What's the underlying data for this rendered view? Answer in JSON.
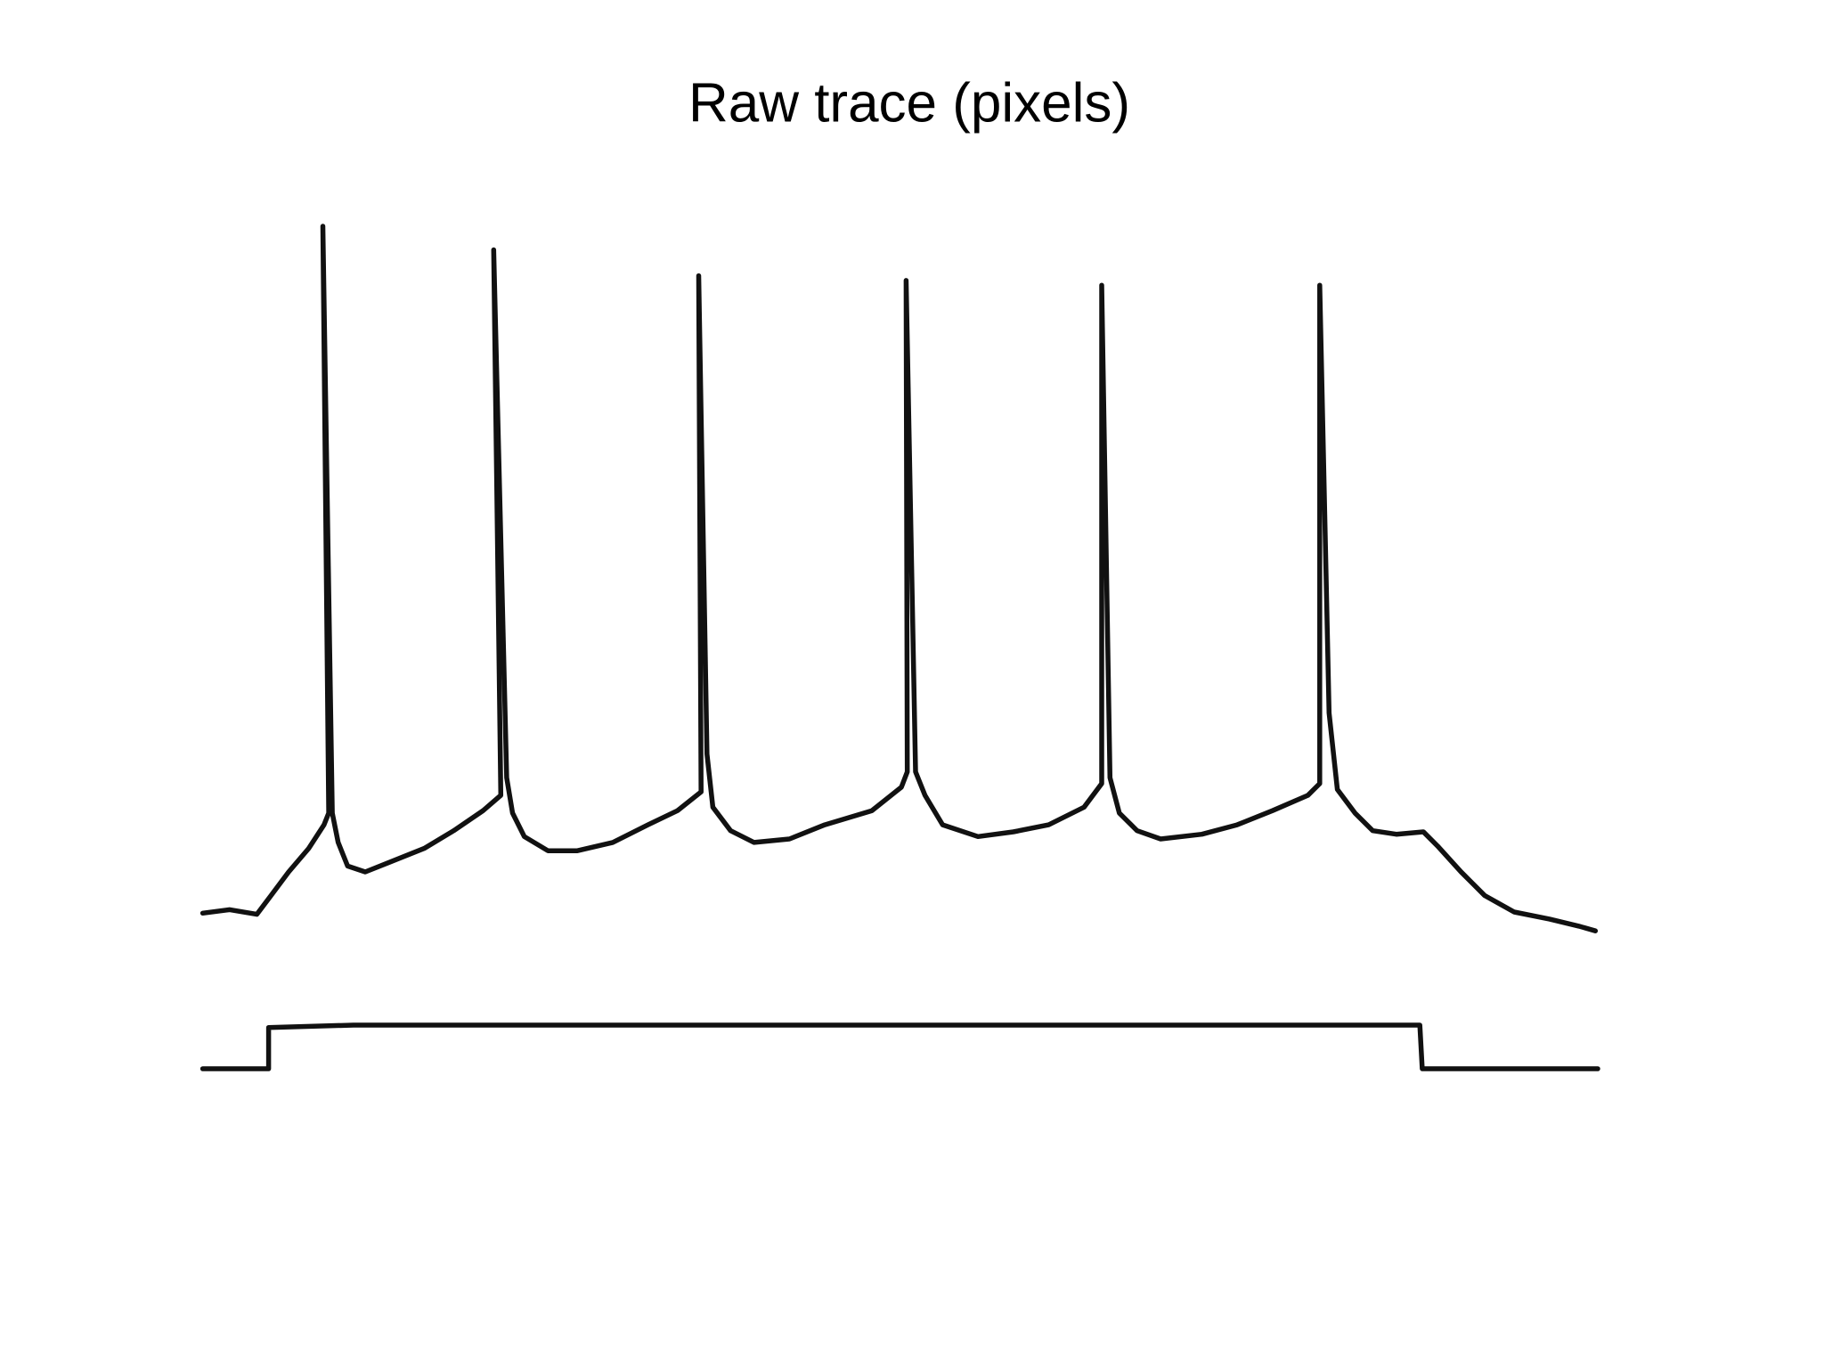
{
  "chart_data": {
    "type": "line",
    "title": "Raw trace (pixels)",
    "xlim": [
      0,
      1548
    ],
    "ylim": [
      1161,
      0
    ],
    "series": [
      {
        "color": "#111111",
        "x": [
          172,
          195,
          218,
          230,
          245,
          262,
          275,
          279,
          274,
          282,
          287,
          295,
          310,
          330,
          360,
          385,
          410,
          425,
          419,
          430,
          435,
          445,
          465,
          490,
          520,
          550,
          575,
          595,
          593,
          600,
          605,
          620,
          640,
          670,
          700,
          740,
          765,
          770,
          769,
          777,
          785,
          800,
          830,
          860,
          890,
          920,
          935,
          935,
          942,
          950,
          965,
          985,
          1020,
          1050,
          1080,
          1110,
          1120,
          1120,
          1128,
          1135,
          1150,
          1165,
          1185,
          1208,
          1220,
          1240,
          1260,
          1285,
          1315,
          1340,
          1354
        ],
        "values": [
          775,
          772,
          776,
          760,
          740,
          720,
          700,
          690,
          192,
          690,
          715,
          735,
          740,
          732,
          720,
          705,
          688,
          675,
          212,
          660,
          690,
          710,
          722,
          722,
          715,
          700,
          688,
          672,
          234,
          640,
          685,
          705,
          715,
          712,
          700,
          688,
          668,
          655,
          238,
          655,
          675,
          700,
          710,
          706,
          700,
          685,
          665,
          242,
          660,
          690,
          705,
          712,
          708,
          700,
          688,
          675,
          665,
          242,
          605,
          670,
          690,
          705,
          708,
          706,
          718,
          740,
          760,
          774,
          780,
          786,
          790
        ]
      },
      {
        "color": "#111111",
        "x": [
          172,
          228,
          228,
          300,
          600,
          900,
          1205,
          1207,
          1356
        ],
        "values": [
          907,
          907,
          872,
          870,
          870,
          870,
          870,
          907,
          907
        ]
      }
    ]
  }
}
